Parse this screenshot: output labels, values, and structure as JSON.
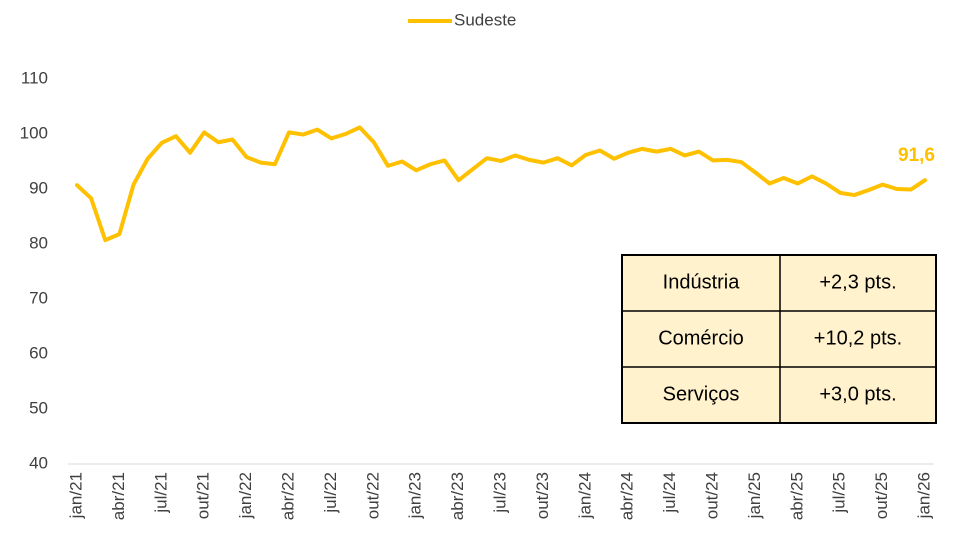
{
  "chart_data": {
    "type": "line",
    "categories": [
      "jan/21",
      null,
      null,
      "abr/21",
      null,
      null,
      "jul/21",
      null,
      null,
      "out/21",
      null,
      null,
      "jan/22",
      null,
      null,
      "abr/22",
      null,
      null,
      "jul/22",
      null,
      null,
      "out/22",
      null,
      null,
      "jan/23",
      null,
      null,
      "abr/23",
      null,
      null,
      "jul/23",
      null,
      null,
      "out/23",
      null,
      null,
      "jan/24",
      null,
      null,
      "abr/24",
      null,
      null,
      "jul/24",
      null,
      null,
      "out/24",
      null,
      null,
      "jan/25",
      null,
      null,
      "abr/25",
      null,
      null,
      "jul/25",
      null,
      null,
      "out/25",
      null,
      null,
      "jan/26"
    ],
    "series": [
      {
        "name": "Sudeste",
        "color": "#FFC000",
        "values": [
          90.7,
          88.3,
          80.7,
          81.8,
          90.8,
          95.5,
          98.4,
          99.6,
          96.6,
          100.3,
          98.5,
          99.0,
          95.8,
          94.8,
          94.5,
          100.3,
          99.9,
          100.8,
          99.2,
          100.0,
          101.2,
          98.5,
          94.2,
          95.0,
          93.4,
          94.5,
          95.2,
          91.6,
          93.6,
          95.6,
          95.1,
          96.1,
          95.3,
          94.8,
          95.6,
          94.3,
          96.2,
          97.0,
          95.5,
          96.6,
          97.3,
          96.8,
          97.3,
          96.1,
          96.8,
          95.2,
          95.3,
          94.9,
          93.0,
          91.0,
          92.0,
          91.0,
          92.3,
          91.0,
          89.3,
          88.9,
          89.8,
          90.8,
          90.0,
          89.9,
          91.6
        ],
        "value_labels": [
          null,
          null,
          null,
          null,
          null,
          null,
          null,
          null,
          null,
          null,
          null,
          null,
          null,
          null,
          null,
          null,
          null,
          null,
          null,
          null,
          null,
          null,
          null,
          null,
          null,
          null,
          null,
          null,
          null,
          null,
          null,
          null,
          null,
          null,
          null,
          null,
          null,
          null,
          null,
          null,
          null,
          null,
          null,
          null,
          null,
          null,
          null,
          null,
          null,
          null,
          null,
          null,
          null,
          null,
          null,
          null,
          null,
          null,
          null,
          null,
          "91,6"
        ]
      }
    ],
    "ylim": [
      40,
      110
    ],
    "yticks": [
      40,
      50,
      60,
      70,
      80,
      90,
      100,
      110
    ],
    "legend": "top",
    "table": {
      "rows": [
        [
          "Indústria",
          "+2,3 pts."
        ],
        [
          "Comércio",
          "+10,2 pts."
        ],
        [
          "Serviços",
          "+3,0 pts."
        ]
      ]
    }
  }
}
